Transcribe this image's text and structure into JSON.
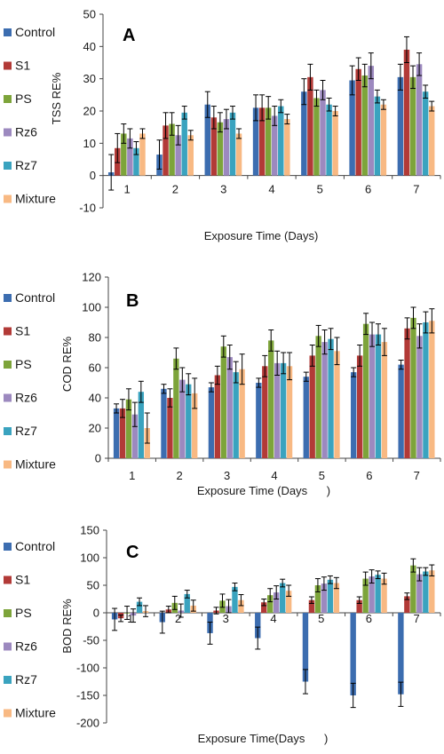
{
  "colors": {
    "series": [
      "#3C6DB0",
      "#B23A37",
      "#7DA43A",
      "#9C89BF",
      "#3AA3BF",
      "#F8B983"
    ],
    "axis": "#444444",
    "errorbar": "#000000"
  },
  "chart_data": [
    {
      "type": "bar",
      "title": "A",
      "xlabel": "Exposure Time (Days)",
      "ylabel": "TSS RE%",
      "ylim": [
        -10,
        50
      ],
      "yticks": [
        -10,
        0,
        10,
        20,
        30,
        40,
        50
      ],
      "categories": [
        "1",
        "2",
        "3",
        "4",
        "5",
        "6",
        "7"
      ],
      "category_label_position": "bottom",
      "legend_position": "left",
      "grid": false,
      "series": [
        {
          "name": "Control",
          "values": [
            1,
            6.5,
            22,
            21,
            26,
            29.5,
            30.5
          ],
          "errors": [
            5.5,
            4.5,
            4,
            4,
            4,
            4.5,
            4
          ]
        },
        {
          "name": "S1",
          "values": [
            8.5,
            15.5,
            18,
            21,
            30.5,
            33,
            39
          ],
          "errors": [
            4.5,
            4,
            3.5,
            4,
            4,
            3.5,
            4
          ]
        },
        {
          "name": "PS",
          "values": [
            13,
            16,
            16.5,
            21,
            24,
            31,
            30.5
          ],
          "errors": [
            3,
            3.5,
            3,
            3.5,
            2.5,
            3.5,
            3.5
          ]
        },
        {
          "name": "Rz6",
          "values": [
            11.5,
            12.5,
            17.5,
            18.5,
            26.5,
            34,
            34.5
          ],
          "errors": [
            3,
            3,
            3,
            3,
            3,
            4,
            3.5
          ]
        },
        {
          "name": "Rz7",
          "values": [
            8.5,
            19.5,
            19.5,
            21.5,
            22,
            24.5,
            26
          ],
          "errors": [
            2,
            2,
            2,
            2,
            2,
            2,
            2
          ]
        },
        {
          "name": "Mixture",
          "values": [
            13,
            12.5,
            13,
            17.5,
            20,
            22,
            21.5
          ],
          "errors": [
            1.5,
            1.5,
            1.5,
            1.5,
            1.5,
            1.5,
            1.5
          ]
        }
      ]
    },
    {
      "type": "bar",
      "title": "B",
      "xlabel": "Exposure Time (Days      )",
      "ylabel": "COD  RE%",
      "ylim": [
        0,
        120
      ],
      "yticks": [
        0,
        20,
        40,
        60,
        80,
        100,
        120
      ],
      "categories": [
        "1",
        "2",
        "3",
        "4",
        "5",
        "6",
        "7"
      ],
      "category_label_position": "bottom",
      "legend_position": "left",
      "grid": false,
      "series": [
        {
          "name": "Control",
          "values": [
            33,
            46,
            47,
            50,
            54,
            57,
            62
          ],
          "errors": [
            3,
            3,
            3,
            3,
            3,
            3,
            3
          ]
        },
        {
          "name": "S1",
          "values": [
            33,
            40,
            55,
            61,
            68,
            68,
            86
          ],
          "errors": [
            6,
            6,
            6,
            7,
            7,
            7,
            7
          ]
        },
        {
          "name": "PS",
          "values": [
            39,
            66,
            74,
            78,
            81,
            89,
            93
          ],
          "errors": [
            7,
            7,
            7,
            7,
            7,
            7,
            7
          ]
        },
        {
          "name": "Rz6",
          "values": [
            29,
            52,
            67,
            63,
            77,
            82,
            81
          ],
          "errors": [
            8,
            8,
            8,
            8,
            8,
            8,
            8
          ]
        },
        {
          "name": "Rz7",
          "values": [
            44,
            49,
            57,
            63,
            79,
            82,
            90
          ],
          "errors": [
            7,
            7,
            7,
            7,
            7,
            7,
            7
          ]
        },
        {
          "name": "Mixture",
          "values": [
            20,
            43,
            59,
            61,
            71,
            77,
            91
          ],
          "errors": [
            10,
            10,
            10,
            9,
            9,
            9,
            8
          ]
        }
      ]
    },
    {
      "type": "bar",
      "title": "C",
      "xlabel": "Exposure Time(Days      )",
      "ylabel": "BOD RE%",
      "ylim": [
        -200,
        150
      ],
      "yticks": [
        -200,
        -150,
        -100,
        -50,
        0,
        50,
        100,
        150
      ],
      "categories": [
        "1",
        "2",
        "3",
        "4",
        "5",
        "6",
        "7"
      ],
      "category_label_position": "at-zero",
      "legend_position": "left",
      "grid": false,
      "series": [
        {
          "name": "Control",
          "values": [
            -12,
            -17,
            -37,
            -46,
            -125,
            -150,
            -148
          ],
          "errors": [
            20,
            20,
            20,
            20,
            22,
            22,
            22
          ]
        },
        {
          "name": "S1",
          "values": [
            -10,
            6,
            4,
            19,
            23,
            23,
            30
          ],
          "errors": [
            6,
            6,
            6,
            6,
            6,
            6,
            6
          ]
        },
        {
          "name": "PS",
          "values": [
            0,
            18,
            22,
            32,
            50,
            62,
            86
          ],
          "errors": [
            12,
            12,
            12,
            12,
            12,
            12,
            12
          ]
        },
        {
          "name": "Rz6",
          "values": [
            -5,
            4,
            12,
            37,
            53,
            66,
            70
          ],
          "errors": [
            12,
            12,
            12,
            12,
            12,
            12,
            12
          ]
        },
        {
          "name": "Rz7",
          "values": [
            20,
            34,
            47,
            54,
            60,
            69,
            75
          ],
          "errors": [
            7,
            7,
            7,
            7,
            7,
            7,
            7
          ]
        },
        {
          "name": "Mixture",
          "values": [
            3,
            13,
            23,
            40,
            54,
            62,
            77
          ],
          "errors": [
            10,
            10,
            10,
            10,
            10,
            10,
            10
          ]
        }
      ]
    }
  ]
}
